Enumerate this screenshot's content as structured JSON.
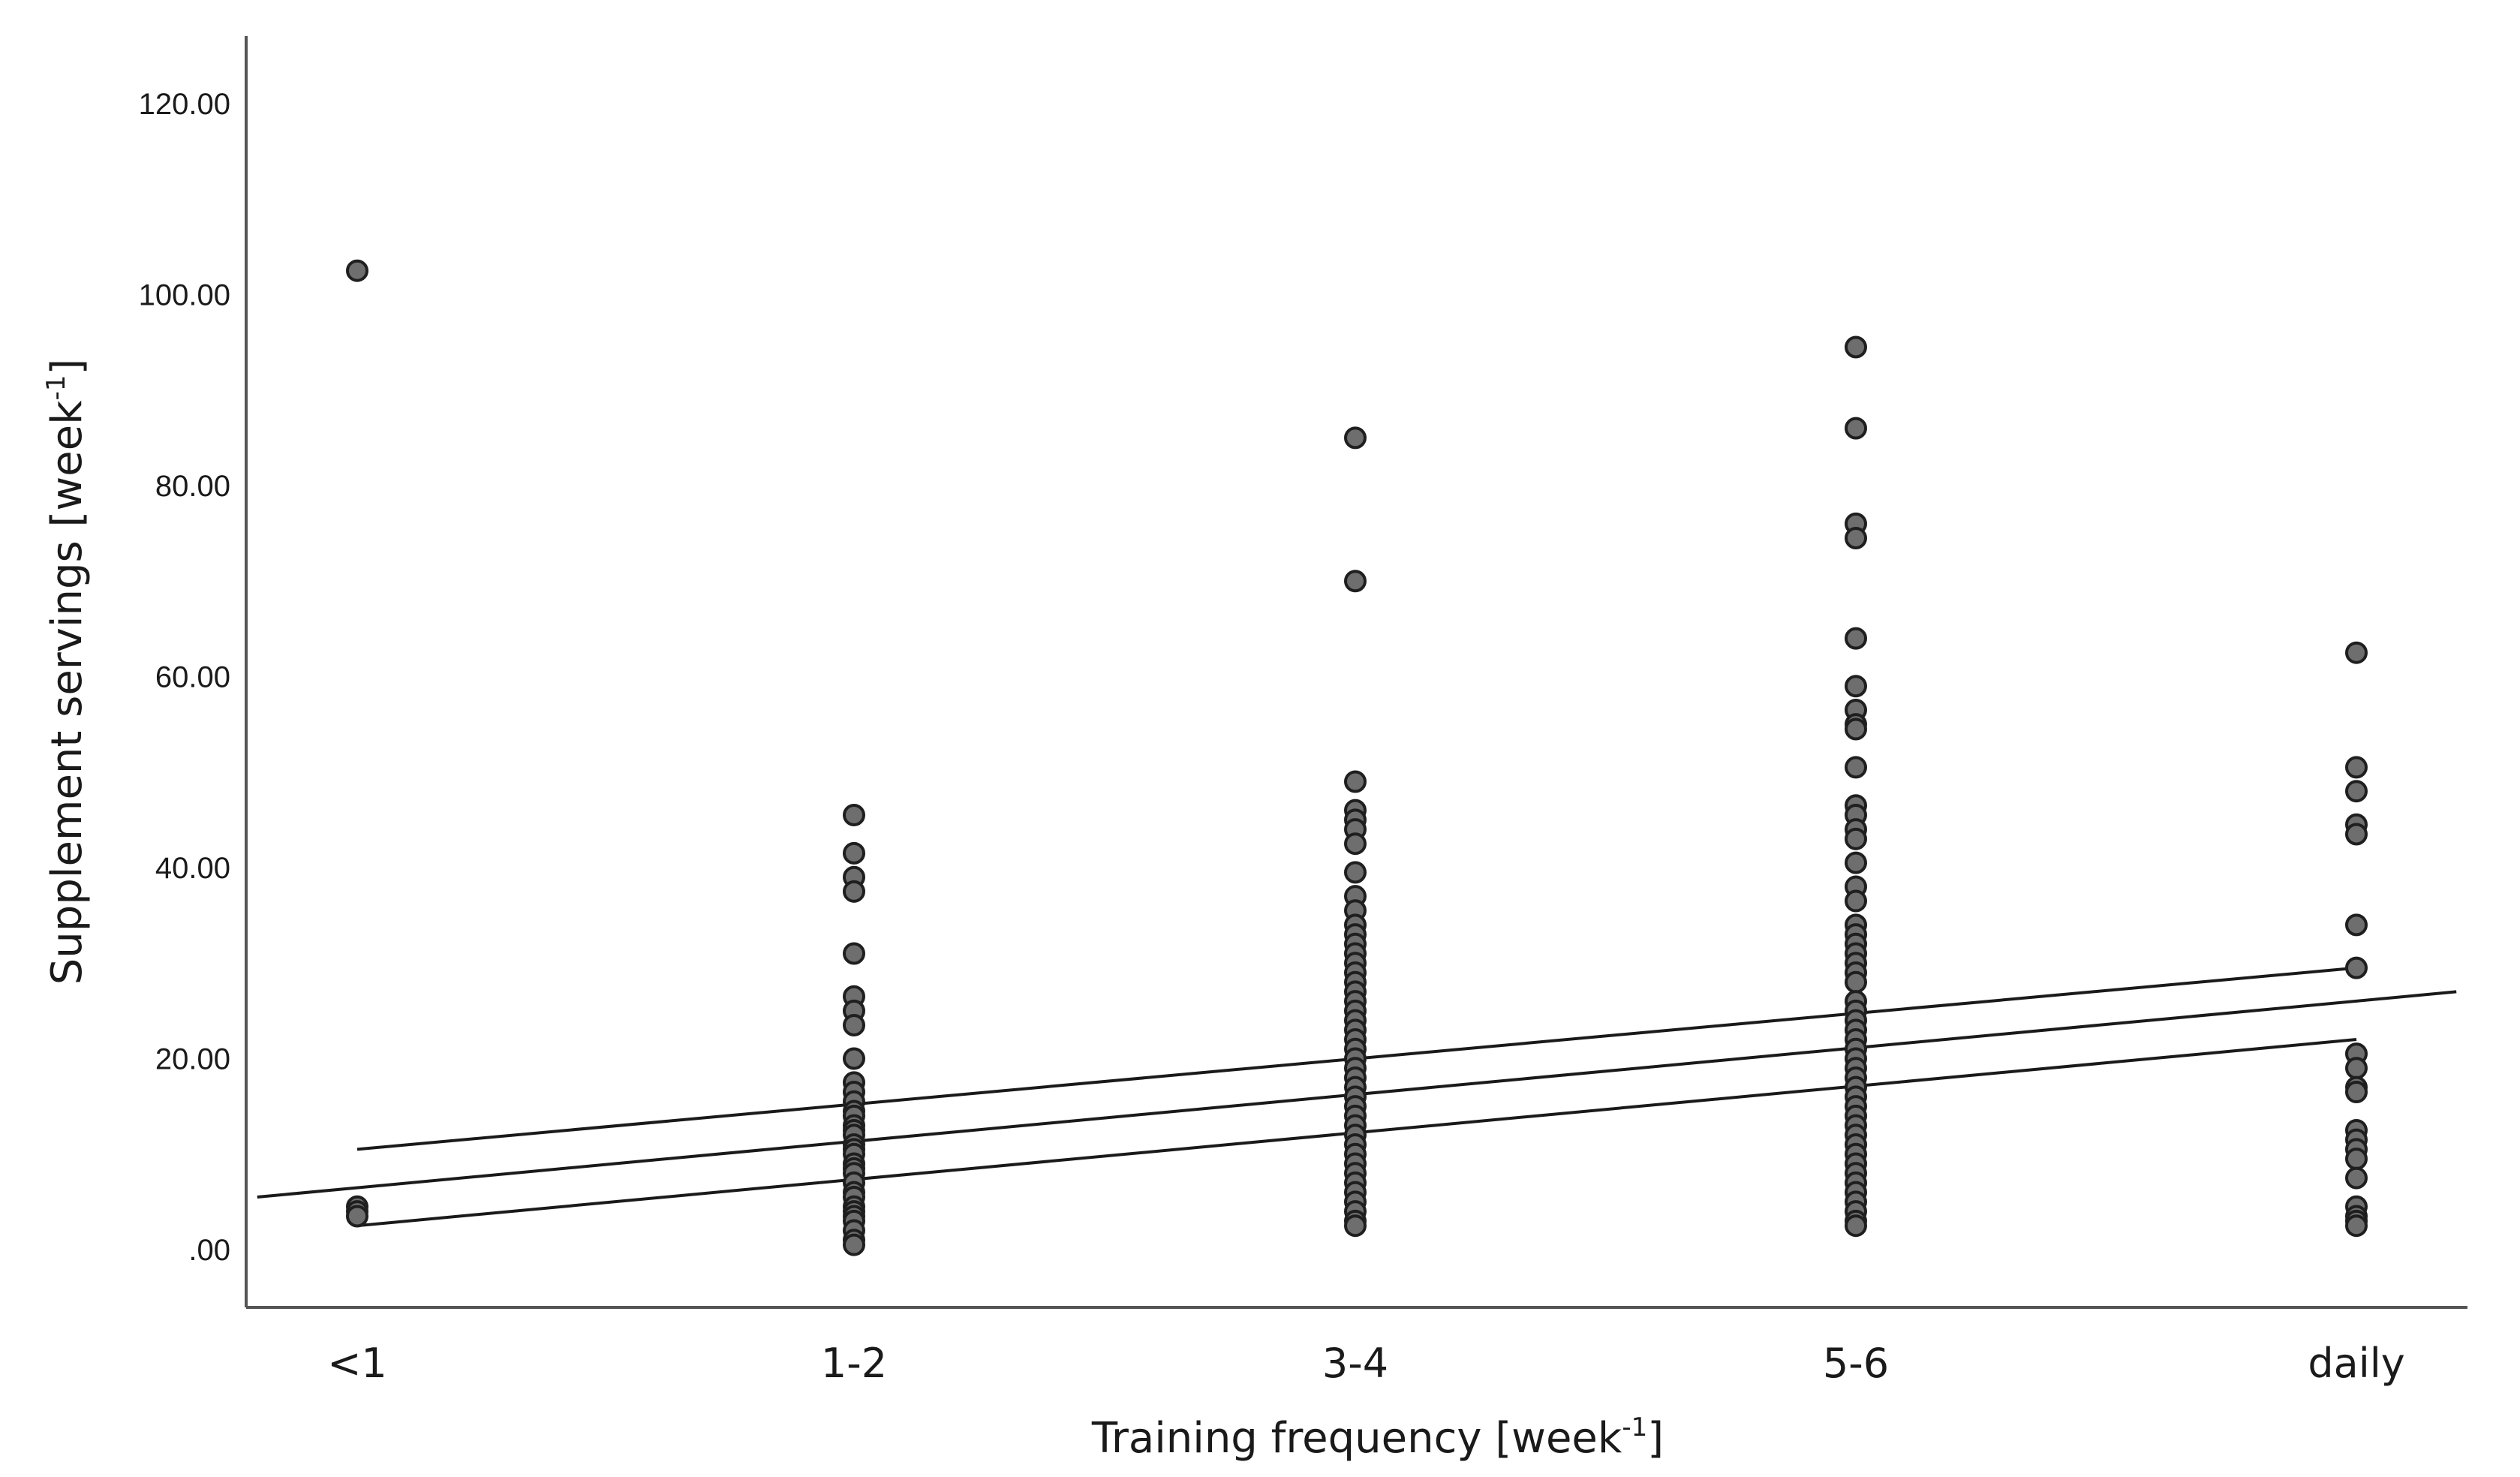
{
  "chart_data": {
    "type": "scatter",
    "title": "",
    "xlabel": "Training frequency [week",
    "xlabel_sup": "-1",
    "xlabel_end": "]",
    "ylabel": "Supplement servings [week",
    "ylabel_sup": "-1",
    "ylabel_end": "]",
    "categories": [
      "<1",
      "1-2",
      "3-4",
      "5-6",
      "daily"
    ],
    "ylim": [
      -6,
      128
    ],
    "yticks": [
      0,
      20,
      40,
      60,
      80,
      100,
      120
    ],
    "ytick_labels": [
      ".00",
      "20.00",
      "40.00",
      "60.00",
      "80.00",
      "100.00",
      "120.00"
    ],
    "grid": false,
    "points": [
      {
        "category": "<1",
        "y": [
          102.5,
          4.5,
          4.0,
          3.5
        ]
      },
      {
        "category": "1-2",
        "y": [
          45.5,
          41.5,
          39,
          37.5,
          31,
          26.5,
          25,
          23.5,
          20,
          17.5,
          16.5,
          15.5,
          14.5,
          14,
          13,
          12.5,
          12,
          11,
          10.5,
          10,
          9,
          8.5,
          8,
          7,
          6,
          5.5,
          4.5,
          4,
          3.5,
          3,
          2,
          1,
          0.5
        ]
      },
      {
        "category": "3-4",
        "y": [
          85,
          70,
          49,
          46,
          45,
          44,
          42.5,
          39.5,
          37,
          35.5,
          34,
          33,
          32,
          31,
          30,
          29,
          28,
          27,
          26,
          25,
          24,
          23,
          22,
          21,
          20,
          19,
          18,
          17,
          16,
          15,
          14,
          13,
          12,
          11,
          10,
          9,
          8,
          7,
          6,
          5,
          4,
          3,
          2.5
        ]
      },
      {
        "category": "5-6",
        "y": [
          94.5,
          86,
          76,
          74.5,
          64,
          59,
          56.5,
          55,
          54.5,
          50.5,
          46.5,
          45.5,
          44,
          43,
          40.5,
          38,
          36.5,
          34,
          33,
          32,
          31,
          30,
          29,
          28,
          26,
          25,
          24,
          23,
          22,
          21,
          20,
          19,
          18,
          17,
          16,
          15,
          14,
          13,
          12,
          11,
          10,
          9,
          8,
          7,
          6,
          5,
          4,
          3,
          2.5
        ]
      },
      {
        "category": "daily",
        "y": [
          62.5,
          50.5,
          48,
          44.5,
          43.5,
          34,
          29.5,
          20.5,
          19,
          17,
          16.5,
          12.5,
          11.5,
          10.5,
          9.5,
          7.5,
          4.5,
          3.5,
          3,
          2.5
        ]
      }
    ],
    "fit_line": {
      "x_index": [
        -0.2,
        4.2
      ],
      "y": [
        5.5,
        27
      ]
    },
    "ci_upper": {
      "x_index": [
        0,
        4
      ],
      "y": [
        10.5,
        29.5
      ]
    },
    "ci_lower": {
      "x_index": [
        0,
        4
      ],
      "y": [
        2.5,
        22
      ]
    }
  }
}
